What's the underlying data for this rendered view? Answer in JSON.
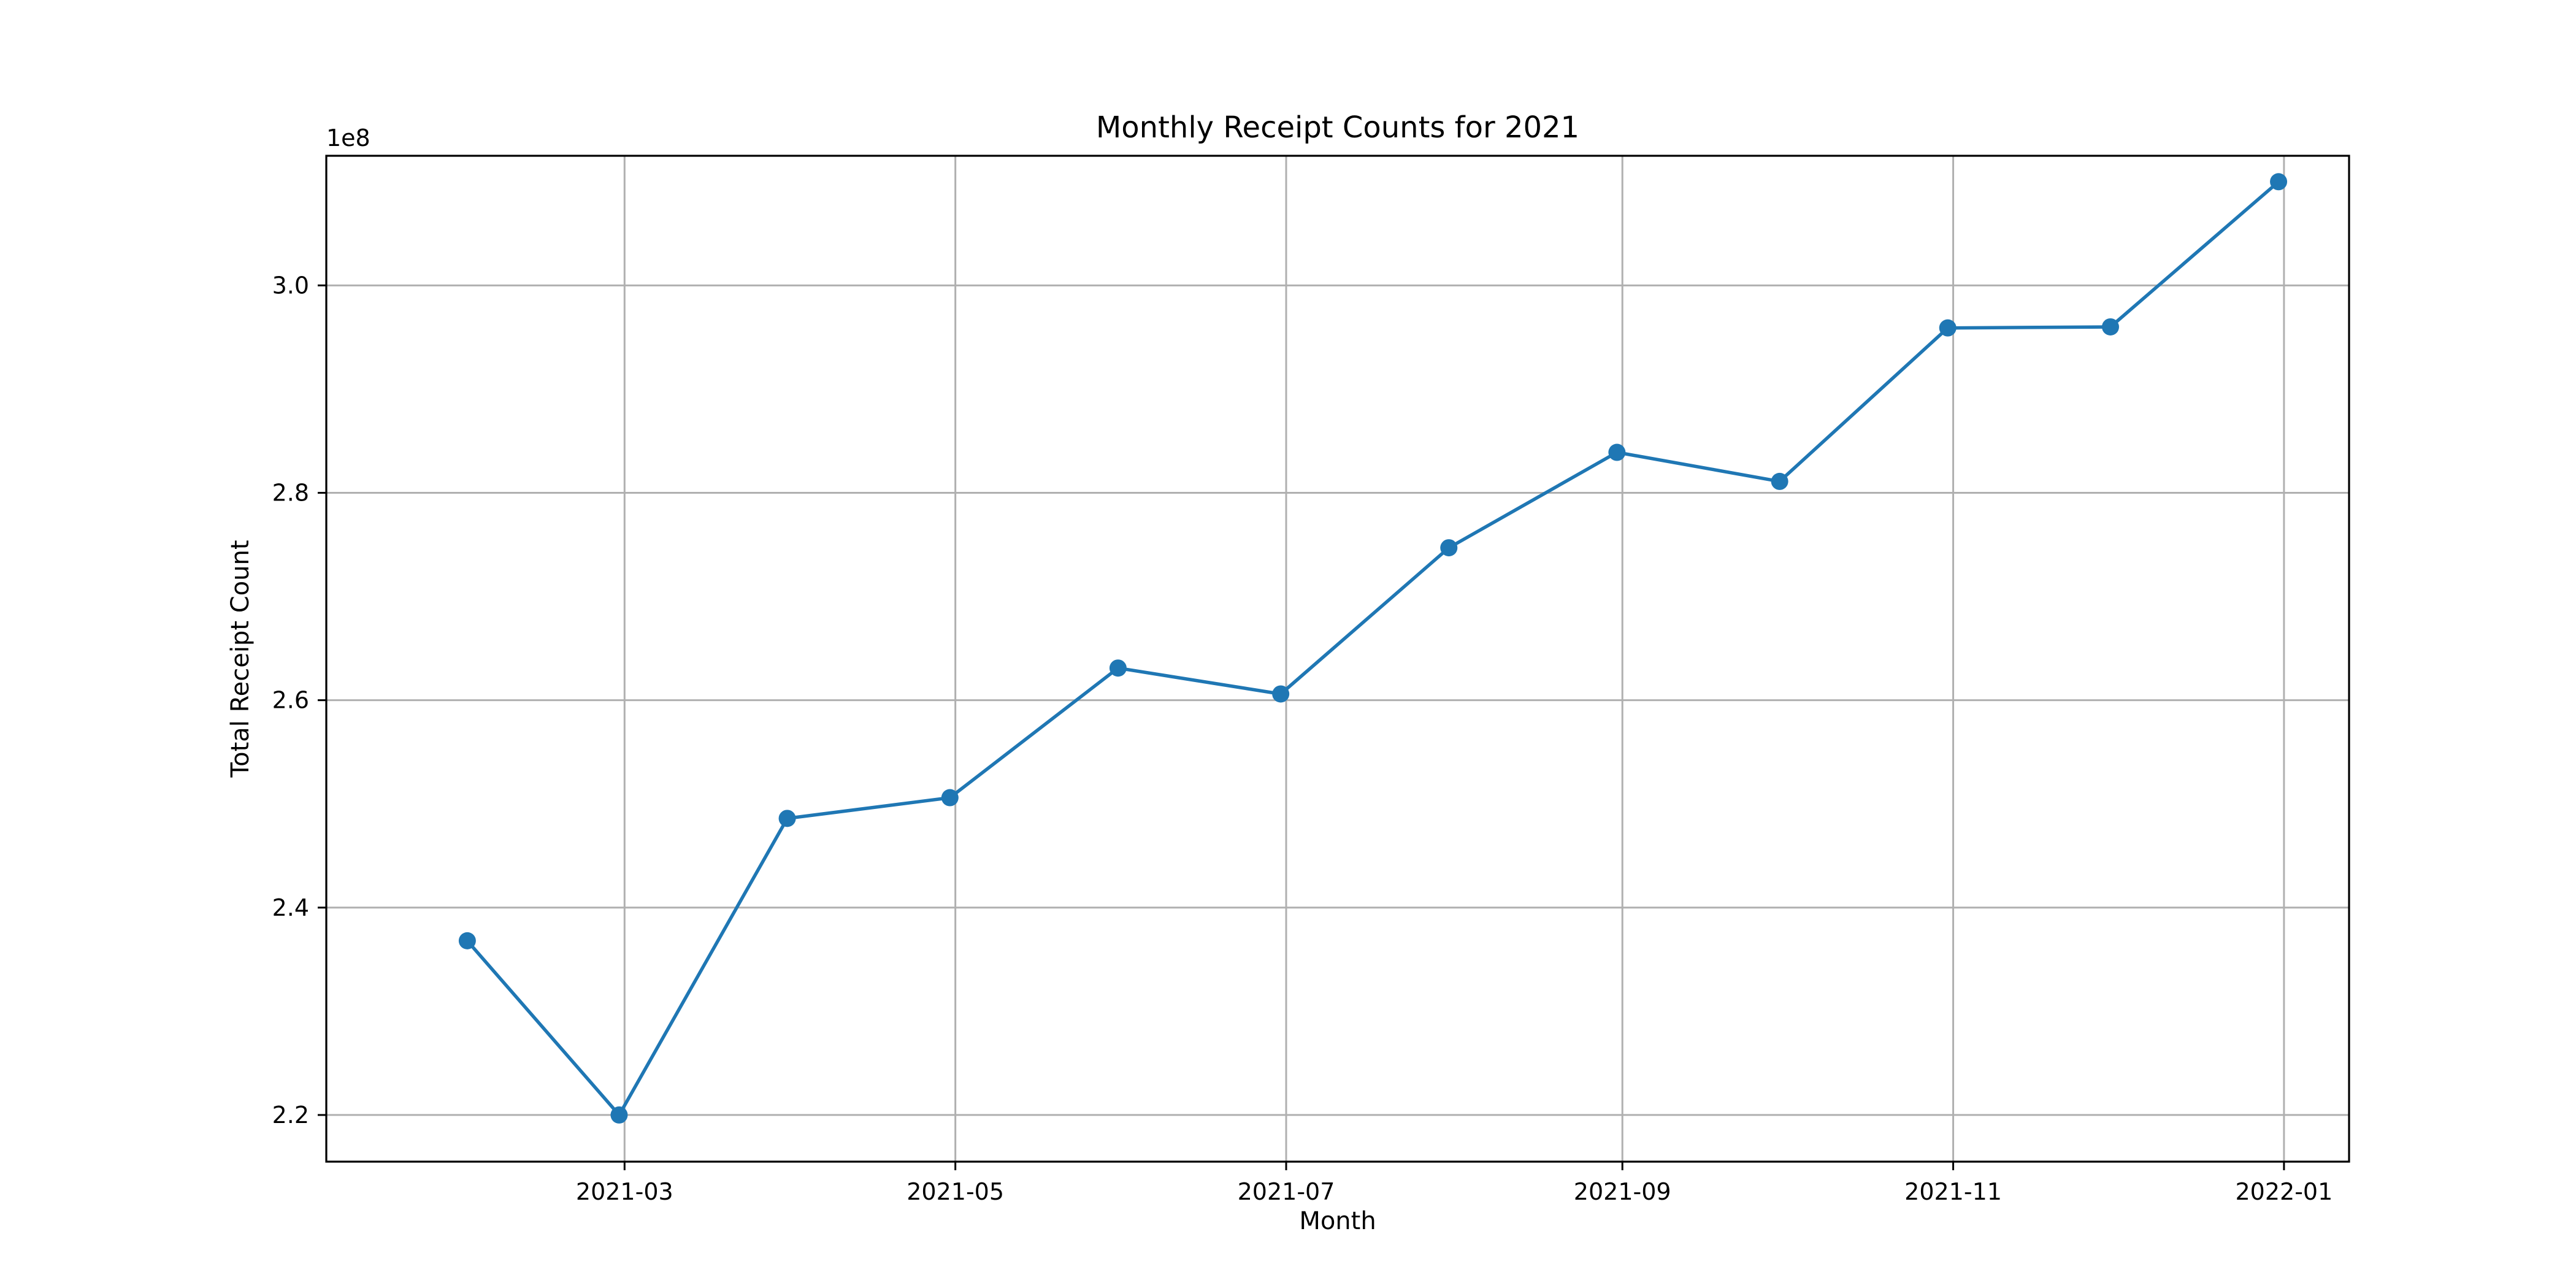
{
  "chart_data": {
    "type": "line",
    "title": "Monthly Receipt Counts for 2021",
    "xlabel": "Month",
    "ylabel": "Total Receipt Count",
    "y_offset_label": "1e8",
    "grid": true,
    "legend": null,
    "line_color": "#1f77b4",
    "marker": "circle",
    "x_ticks": [
      "2021-03",
      "2021-05",
      "2021-07",
      "2021-09",
      "2021-11",
      "2022-01"
    ],
    "y_ticks": [
      "2.2",
      "2.4",
      "2.6",
      "2.8",
      "3.0"
    ],
    "y_tick_values": [
      2.2,
      2.4,
      2.6,
      2.8,
      3.0
    ],
    "x_range": [
      "2021-01-05",
      "2022-01-13"
    ],
    "ylim": [
      2.155,
      3.125
    ],
    "series": [
      {
        "x": [
          "2021-01-31",
          "2021-02-28",
          "2021-03-31",
          "2021-04-30",
          "2021-05-31",
          "2021-06-30",
          "2021-07-31",
          "2021-08-31",
          "2021-09-30",
          "2021-10-31",
          "2021-11-30",
          "2021-12-31"
        ],
        "values": [
          2.368,
          2.2,
          2.486,
          2.506,
          2.631,
          2.606,
          2.747,
          2.839,
          2.811,
          2.959,
          2.96,
          3.1
        ]
      }
    ]
  }
}
